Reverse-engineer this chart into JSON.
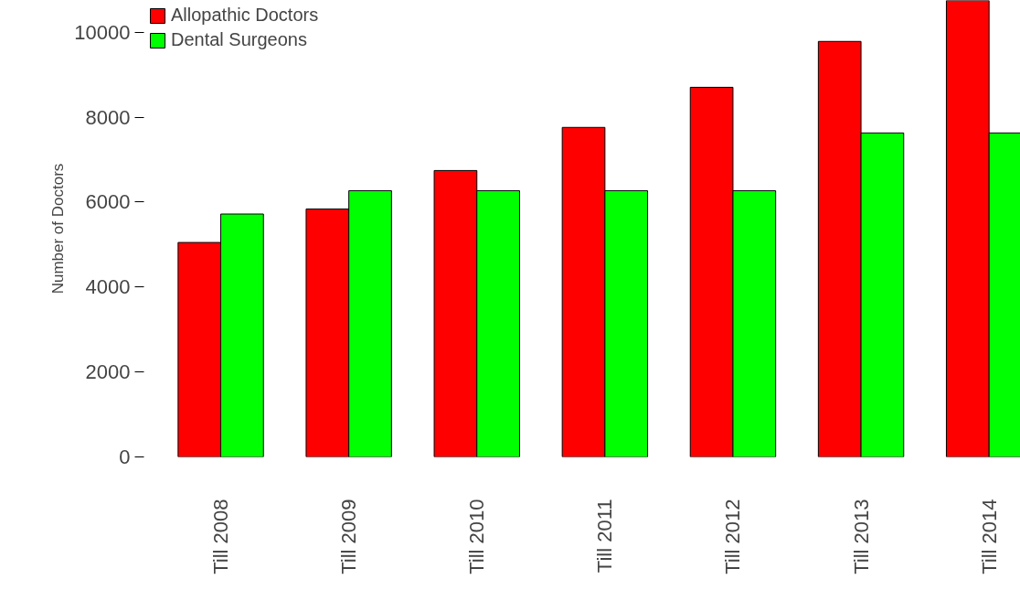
{
  "chart_data": {
    "type": "bar",
    "ylabel": "Number of Doctors",
    "categories": [
      "Till 2008",
      "Till 2009",
      "Till 2010",
      "Till 2011",
      "Till 2012",
      "Till 2013",
      "Till 2014"
    ],
    "series": [
      {
        "name": "Allopathic Doctors",
        "color": "#ff0000",
        "values": [
          5050,
          5840,
          6745,
          7760,
          8705,
          9785,
          10750
        ]
      },
      {
        "name": "Dental Surgeons",
        "color": "#00ff00",
        "values": [
          5720,
          6270,
          6270,
          6270,
          6270,
          7630,
          7630
        ]
      }
    ],
    "ylim": [
      0,
      10750
    ],
    "yticks": [
      0,
      2000,
      4000,
      6000,
      8000,
      10000
    ],
    "grid": false,
    "legend": "top left"
  }
}
